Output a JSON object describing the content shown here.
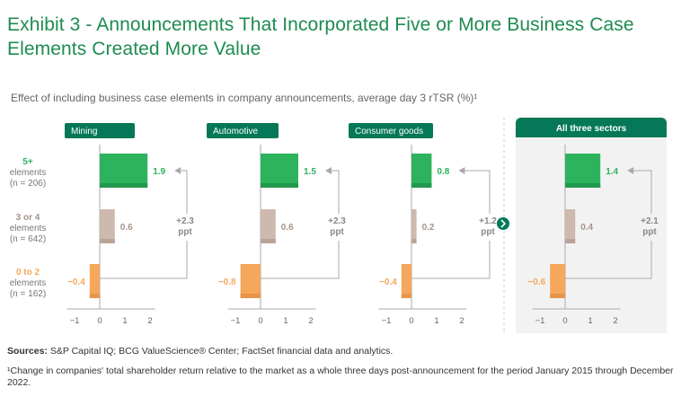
{
  "title": "Exhibit 3 - Announcements That Incorporated Five or More Business Case Elements Created More Value",
  "subtitle": "Effect of including business case elements in company announcements, average day 3 rTSR (%)¹",
  "sources_label": "Sources:",
  "sources_text": " S&P Capital IQ; BCG ValueScience® Center; FactSet financial data and analytics.",
  "footnote": "¹Change in companies' total shareholder return relative to the market as a whole three days post-announcement for the period January 2015 through December 2022.",
  "colors": {
    "brand": "#047857",
    "five_plus": "#2db35d",
    "three_four": "#cdb9ae",
    "zero_two": "#f5a75b",
    "title": "#1e8b4f"
  },
  "chart_data": {
    "type": "bar",
    "orientation": "horizontal",
    "categories": [
      {
        "label": "5+",
        "sub": "elements",
        "n": "(n = 206)"
      },
      {
        "label": "3 or 4",
        "sub": "elements",
        "n": "(n = 642)"
      },
      {
        "label": "0 to 2",
        "sub": "elements",
        "n": "(n = 162)"
      }
    ],
    "xlim": [
      -1,
      2
    ],
    "xticks": [
      "−1",
      "0",
      "1",
      "2"
    ],
    "delta_unit": "ppt",
    "panels": [
      {
        "name": "Mining",
        "values": [
          1.9,
          0.6,
          -0.4
        ],
        "labels": [
          "1.9",
          "0.6",
          "−0.4"
        ],
        "delta": "+2.3"
      },
      {
        "name": "Automotive",
        "values": [
          1.5,
          0.6,
          -0.8
        ],
        "labels": [
          "1.5",
          "0.6",
          "−0.8"
        ],
        "delta": "+2.3"
      },
      {
        "name": "Consumer goods",
        "values": [
          0.8,
          0.2,
          -0.4
        ],
        "labels": [
          "0.8",
          "0.2",
          "−0.4"
        ],
        "delta": "+1.2"
      },
      {
        "name": "All three sectors",
        "values": [
          1.4,
          0.4,
          -0.6
        ],
        "labels": [
          "1.4",
          "0.4",
          "−0.6"
        ],
        "delta": "+2.1",
        "highlight": true
      }
    ]
  }
}
